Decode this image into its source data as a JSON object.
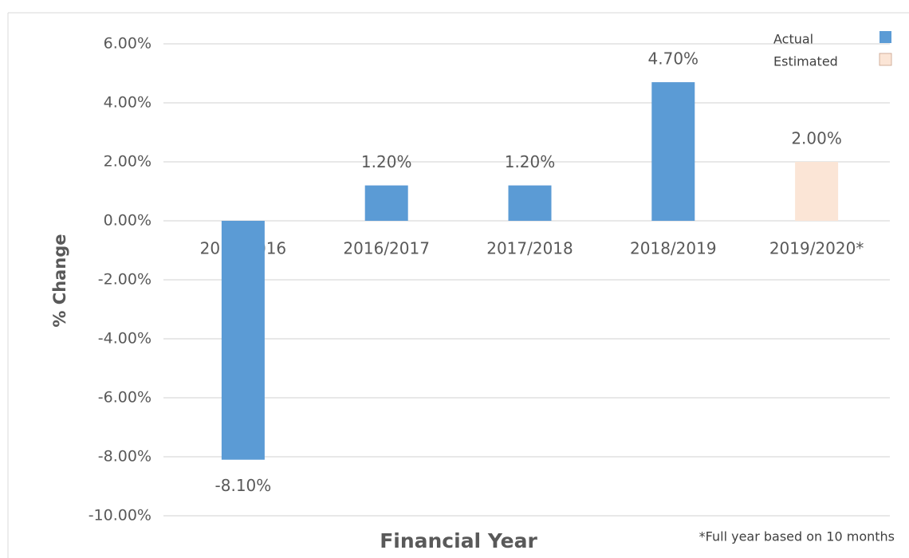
{
  "chart_data": {
    "type": "bar",
    "categories": [
      "2015/2016",
      "2016/2017",
      "2017/2018",
      "2018/2019",
      "2019/2020*"
    ],
    "series": [
      {
        "name": "Actual",
        "color": "#5b9bd5",
        "values": [
          -8.1,
          1.2,
          1.2,
          4.7,
          null
        ],
        "value_labels": [
          "-8.10%",
          "1.20%",
          "1.20%",
          "4.70%",
          null
        ]
      },
      {
        "name": "Estimated",
        "color": "#fbe5d6",
        "values": [
          null,
          null,
          null,
          null,
          2.0
        ],
        "value_labels": [
          null,
          null,
          null,
          null,
          "2.00%"
        ]
      }
    ],
    "x_label": "Financial Year",
    "y_label": "% Change",
    "annotation": "*Full year based on 10 months",
    "ylim": [
      -10,
      6
    ],
    "yticks": [
      {
        "value": -10,
        "label": "-10.00%"
      },
      {
        "value": -8,
        "label": "-8.00%"
      },
      {
        "value": -6,
        "label": "-6.00%"
      },
      {
        "value": -4,
        "label": "-4.00%"
      },
      {
        "value": -2,
        "label": "-2.00%"
      },
      {
        "value": 0,
        "label": "0.00%"
      },
      {
        "value": 2,
        "label": "2.00%"
      },
      {
        "value": 4,
        "label": "4.00%"
      },
      {
        "value": 6,
        "label": "6.00%"
      }
    ],
    "grid": true,
    "legend": "upper right"
  }
}
